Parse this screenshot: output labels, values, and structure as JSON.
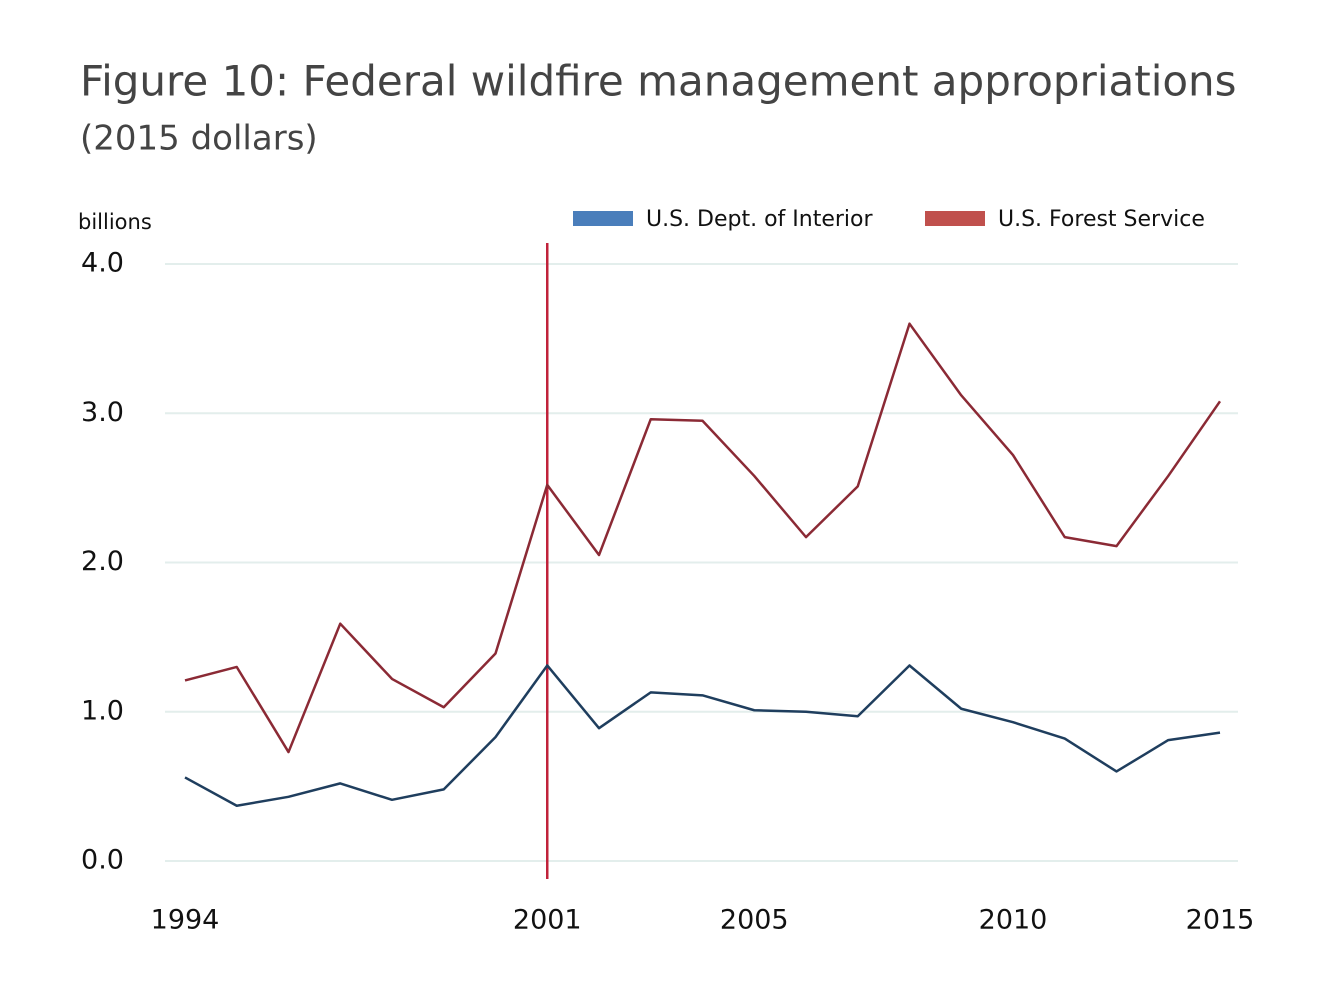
{
  "chart_data": {
    "type": "line",
    "title": "Figure 10: Federal wildfire management appropriations",
    "subtitle": "(2015 dollars)",
    "y_label": "billions",
    "categories": [
      "1994",
      null,
      null,
      null,
      null,
      null,
      null,
      "2001",
      null,
      null,
      null,
      "2005",
      null,
      null,
      null,
      null,
      "2010",
      null,
      null,
      null,
      "2015"
    ],
    "series": [
      {
        "name": "U.S. Dept. of Interior",
        "color": "#1f3e5e",
        "legend_color": "#4a7ebb",
        "values": [
          0.56,
          0.37,
          0.43,
          0.52,
          0.41,
          0.48,
          0.83,
          1.31,
          0.89,
          1.13,
          1.11,
          1.01,
          1.0,
          0.97,
          1.31,
          1.02,
          0.93,
          0.82,
          0.6,
          0.81,
          0.86
        ]
      },
      {
        "name": "U.S. Forest Service",
        "color": "#8b2a35",
        "legend_color": "#c0504d",
        "values": [
          1.21,
          1.3,
          0.73,
          1.59,
          1.22,
          1.03,
          1.39,
          2.52,
          2.05,
          2.96,
          2.95,
          2.58,
          2.17,
          2.51,
          3.6,
          3.12,
          2.72,
          2.17,
          2.11,
          2.58,
          3.08
        ]
      }
    ],
    "ylim": [
      0,
      4
    ],
    "yticks": [
      {
        "value": 0,
        "label": "0.0"
      },
      {
        "value": 1,
        "label": "1.0"
      },
      {
        "value": 2,
        "label": "2.0"
      },
      {
        "value": 3,
        "label": "3.0"
      },
      {
        "value": 4,
        "label": "4.0"
      }
    ],
    "grid": true,
    "vline_category": 7,
    "vline_color": "#c0223a",
    "legend": "top-right"
  }
}
